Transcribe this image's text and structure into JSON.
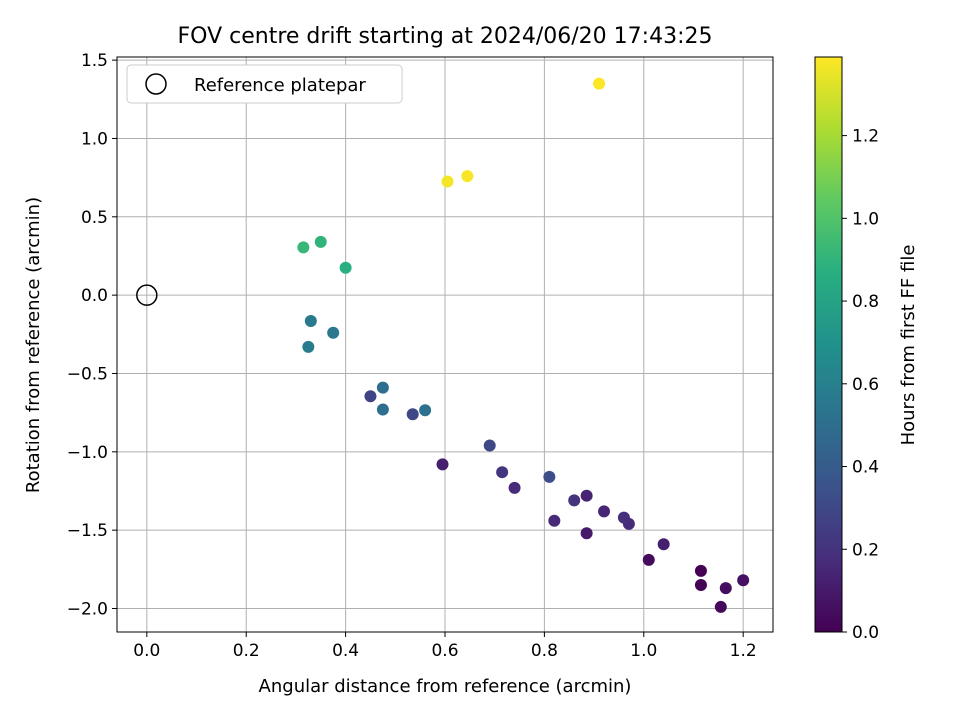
{
  "chart_data": {
    "type": "scatter",
    "title": "FOV centre drift starting at 2024/06/20 17:43:25",
    "xlabel": "Angular distance from reference (arcmin)",
    "ylabel": "Rotation from reference (arcmin)",
    "xlim": [
      -0.06,
      1.26
    ],
    "ylim": [
      -2.15,
      1.52
    ],
    "xticks": [
      0.0,
      0.2,
      0.4,
      0.6,
      0.8,
      1.0,
      1.2
    ],
    "xtick_labels": [
      "0.0",
      "0.2",
      "0.4",
      "0.6",
      "0.8",
      "1.0",
      "1.2"
    ],
    "yticks": [
      -2.0,
      -1.5,
      -1.0,
      -0.5,
      0.0,
      0.5,
      1.0,
      1.5
    ],
    "ytick_labels": [
      "−2.0",
      "−1.5",
      "−1.0",
      "−0.5",
      "0.0",
      "0.5",
      "1.0",
      "1.5"
    ],
    "grid": true,
    "legend": {
      "placement": "top-left",
      "entries": [
        {
          "label": "Reference platepar",
          "marker": "open-circle"
        }
      ]
    },
    "reference_point": {
      "x": 0.0,
      "y": 0.0
    },
    "colorbar": {
      "label": "Hours from first FF file",
      "range": [
        0.0,
        1.39
      ],
      "ticks": [
        0.0,
        0.2,
        0.4,
        0.6,
        0.8,
        1.0,
        1.2
      ],
      "tick_labels": [
        "0.0",
        "0.2",
        "0.4",
        "0.6",
        "0.8",
        "1.0",
        "1.2"
      ],
      "colormap": "viridis"
    },
    "points": [
      {
        "x": 1.115,
        "y": -1.76,
        "c": 0.0
      },
      {
        "x": 1.115,
        "y": -1.85,
        "c": 0.01
      },
      {
        "x": 1.155,
        "y": -1.99,
        "c": 0.03
      },
      {
        "x": 1.165,
        "y": -1.87,
        "c": 0.05
      },
      {
        "x": 1.2,
        "y": -1.82,
        "c": 0.06
      },
      {
        "x": 1.01,
        "y": -1.69,
        "c": 0.04
      },
      {
        "x": 1.04,
        "y": -1.59,
        "c": 0.12
      },
      {
        "x": 0.97,
        "y": -1.46,
        "c": 0.16
      },
      {
        "x": 0.96,
        "y": -1.42,
        "c": 0.19
      },
      {
        "x": 0.92,
        "y": -1.38,
        "c": 0.15
      },
      {
        "x": 0.885,
        "y": -1.52,
        "c": 0.1
      },
      {
        "x": 0.885,
        "y": -1.28,
        "c": 0.14
      },
      {
        "x": 0.86,
        "y": -1.31,
        "c": 0.2
      },
      {
        "x": 0.82,
        "y": -1.44,
        "c": 0.16
      },
      {
        "x": 0.81,
        "y": -1.16,
        "c": 0.33
      },
      {
        "x": 0.74,
        "y": -1.23,
        "c": 0.17
      },
      {
        "x": 0.715,
        "y": -1.13,
        "c": 0.21
      },
      {
        "x": 0.69,
        "y": -0.96,
        "c": 0.3
      },
      {
        "x": 0.595,
        "y": -1.08,
        "c": 0.12
      },
      {
        "x": 0.56,
        "y": -0.735,
        "c": 0.52
      },
      {
        "x": 0.535,
        "y": -0.76,
        "c": 0.3
      },
      {
        "x": 0.475,
        "y": -0.59,
        "c": 0.5
      },
      {
        "x": 0.475,
        "y": -0.73,
        "c": 0.5
      },
      {
        "x": 0.45,
        "y": -0.645,
        "c": 0.28
      },
      {
        "x": 0.375,
        "y": -0.24,
        "c": 0.55
      },
      {
        "x": 0.33,
        "y": -0.165,
        "c": 0.56
      },
      {
        "x": 0.325,
        "y": -0.33,
        "c": 0.58
      },
      {
        "x": 0.4,
        "y": 0.175,
        "c": 0.87
      },
      {
        "x": 0.315,
        "y": 0.305,
        "c": 0.92
      },
      {
        "x": 0.35,
        "y": 0.34,
        "c": 0.9
      },
      {
        "x": 0.605,
        "y": 0.725,
        "c": 1.37
      },
      {
        "x": 0.645,
        "y": 0.76,
        "c": 1.38
      },
      {
        "x": 0.91,
        "y": 1.35,
        "c": 1.39
      }
    ]
  }
}
